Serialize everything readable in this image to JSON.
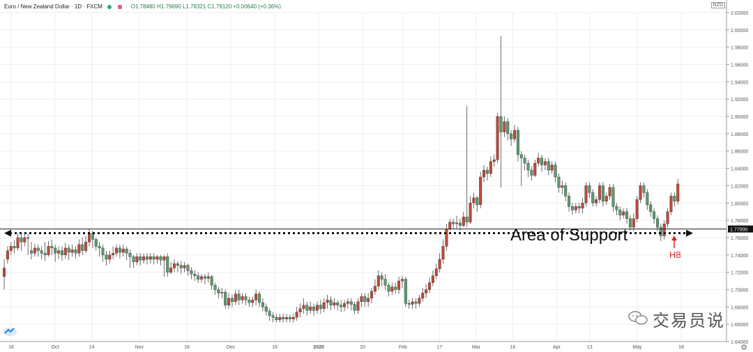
{
  "header": {
    "symbol": "Euro / New Zealand Dollar · 1D · FXCM",
    "ohlc": "O1.78480  H1.79690  L1.78321  C1.79120  +0.00640 (+0.36%)"
  },
  "currency_badge": "NZD",
  "annotation": "Area of Support",
  "marker_label": "H8",
  "watermark": "交易员说",
  "colors": {
    "up": "#5b9a6e",
    "down": "#c0493b",
    "wick": "#444444",
    "grid": "#eeeeee",
    "support": "#222222",
    "marker": "#e02020"
  },
  "chart_data": {
    "type": "candlestick",
    "y_axis": {
      "min": 1.64,
      "max": 2.02,
      "ticks": [
        1.64,
        1.66,
        1.68,
        1.7,
        1.72,
        1.74,
        1.76,
        1.78,
        1.8,
        1.82,
        1.84,
        1.86,
        1.88,
        1.9,
        1.92,
        1.94,
        1.96,
        1.98,
        2.0,
        2.02
      ],
      "tick_labels": [
        "1.64000",
        "1.66000",
        "1.68000",
        "1.70000",
        "1.72000",
        "1.74000",
        "1.76000",
        "1.78000",
        "1.80000",
        "1.82000",
        "1.84000",
        "1.86000",
        "1.88000",
        "1.90000",
        "1.92000",
        "1.94000",
        "1.96000",
        "1.98000",
        "2.00000",
        "2.02000"
      ]
    },
    "x_labels": [
      "16",
      "Oct",
      "14",
      "Nov",
      "18",
      "Dec",
      "16",
      "2020",
      "20",
      "Feb",
      "17",
      "Mar",
      "16",
      "Apr",
      "13",
      "May",
      "18"
    ],
    "x_label_days": [
      0,
      12,
      22,
      35,
      48,
      60,
      72,
      84,
      96,
      107,
      117,
      127,
      137,
      149,
      158,
      171,
      183
    ],
    "support_level": 1.77,
    "support_label": "1.77000",
    "grid": true,
    "candles": [
      [
        1.725,
        1.735,
        1.7,
        1.715
      ],
      [
        1.745,
        1.75,
        1.73,
        1.735
      ],
      [
        1.75,
        1.755,
        1.74,
        1.745
      ],
      [
        1.748,
        1.757,
        1.742,
        1.75
      ],
      [
        1.76,
        1.765,
        1.745,
        1.748
      ],
      [
        1.755,
        1.765,
        1.745,
        1.76
      ],
      [
        1.76,
        1.765,
        1.75,
        1.755
      ],
      [
        1.76,
        1.765,
        1.74,
        1.76
      ],
      [
        1.742,
        1.755,
        1.735,
        1.745
      ],
      [
        1.748,
        1.753,
        1.738,
        1.742
      ],
      [
        1.745,
        1.752,
        1.738,
        1.748
      ],
      [
        1.742,
        1.75,
        1.735,
        1.745
      ],
      [
        1.74,
        1.755,
        1.733,
        1.742
      ],
      [
        1.75,
        1.756,
        1.738,
        1.74
      ],
      [
        1.748,
        1.758,
        1.74,
        1.75
      ],
      [
        1.742,
        1.752,
        1.732,
        1.748
      ],
      [
        1.745,
        1.75,
        1.735,
        1.742
      ],
      [
        1.74,
        1.75,
        1.733,
        1.745
      ],
      [
        1.748,
        1.754,
        1.736,
        1.74
      ],
      [
        1.743,
        1.752,
        1.734,
        1.748
      ],
      [
        1.746,
        1.752,
        1.738,
        1.743
      ],
      [
        1.742,
        1.75,
        1.736,
        1.746
      ],
      [
        1.752,
        1.758,
        1.738,
        1.742
      ],
      [
        1.745,
        1.76,
        1.74,
        1.752
      ],
      [
        1.755,
        1.762,
        1.742,
        1.745
      ],
      [
        1.765,
        1.77,
        1.75,
        1.755
      ],
      [
        1.758,
        1.768,
        1.748,
        1.765
      ],
      [
        1.75,
        1.76,
        1.745,
        1.758
      ],
      [
        1.748,
        1.755,
        1.738,
        1.75
      ],
      [
        1.74,
        1.752,
        1.732,
        1.748
      ],
      [
        1.735,
        1.745,
        1.728,
        1.74
      ],
      [
        1.74,
        1.745,
        1.73,
        1.735
      ],
      [
        1.742,
        1.75,
        1.735,
        1.74
      ],
      [
        1.748,
        1.752,
        1.738,
        1.742
      ],
      [
        1.743,
        1.752,
        1.736,
        1.748
      ],
      [
        1.747,
        1.752,
        1.738,
        1.743
      ],
      [
        1.742,
        1.75,
        1.734,
        1.747
      ],
      [
        1.738,
        1.746,
        1.725,
        1.742
      ],
      [
        1.732,
        1.74,
        1.725,
        1.738
      ],
      [
        1.738,
        1.742,
        1.728,
        1.732
      ],
      [
        1.734,
        1.742,
        1.728,
        1.738
      ],
      [
        1.738,
        1.742,
        1.73,
        1.734
      ],
      [
        1.735,
        1.742,
        1.729,
        1.738
      ],
      [
        1.738,
        1.742,
        1.73,
        1.735
      ],
      [
        1.735,
        1.742,
        1.729,
        1.738
      ],
      [
        1.738,
        1.74,
        1.73,
        1.735
      ],
      [
        1.734,
        1.74,
        1.728,
        1.738
      ],
      [
        1.738,
        1.74,
        1.715,
        1.734
      ],
      [
        1.72,
        1.742,
        1.715,
        1.738
      ],
      [
        1.725,
        1.732,
        1.718,
        1.72
      ],
      [
        1.73,
        1.735,
        1.72,
        1.725
      ],
      [
        1.728,
        1.733,
        1.72,
        1.73
      ],
      [
        1.725,
        1.733,
        1.718,
        1.728
      ],
      [
        1.728,
        1.732,
        1.72,
        1.725
      ],
      [
        1.722,
        1.73,
        1.716,
        1.728
      ],
      [
        1.718,
        1.726,
        1.712,
        1.722
      ],
      [
        1.716,
        1.722,
        1.71,
        1.718
      ],
      [
        1.712,
        1.72,
        1.708,
        1.716
      ],
      [
        1.715,
        1.718,
        1.708,
        1.712
      ],
      [
        1.713,
        1.718,
        1.706,
        1.715
      ],
      [
        1.715,
        1.72,
        1.708,
        1.713
      ],
      [
        1.705,
        1.717,
        1.7,
        1.715
      ],
      [
        1.7,
        1.708,
        1.694,
        1.705
      ],
      [
        1.696,
        1.703,
        1.69,
        1.7
      ],
      [
        1.697,
        1.702,
        1.69,
        1.696
      ],
      [
        1.682,
        1.7,
        1.678,
        1.697
      ],
      [
        1.69,
        1.696,
        1.678,
        1.682
      ],
      [
        1.686,
        1.694,
        1.68,
        1.69
      ],
      [
        1.695,
        1.7,
        1.682,
        1.686
      ],
      [
        1.688,
        1.7,
        1.682,
        1.695
      ],
      [
        1.692,
        1.696,
        1.684,
        1.688
      ],
      [
        1.688,
        1.696,
        1.682,
        1.692
      ],
      [
        1.685,
        1.692,
        1.68,
        1.688
      ],
      [
        1.688,
        1.692,
        1.68,
        1.685
      ],
      [
        1.695,
        1.7,
        1.682,
        1.688
      ],
      [
        1.685,
        1.698,
        1.68,
        1.695
      ],
      [
        1.68,
        1.69,
        1.675,
        1.685
      ],
      [
        1.675,
        1.684,
        1.67,
        1.68
      ],
      [
        1.67,
        1.678,
        1.664,
        1.675
      ],
      [
        1.668,
        1.674,
        1.662,
        1.67
      ],
      [
        1.665,
        1.672,
        1.662,
        1.668
      ],
      [
        1.668,
        1.672,
        1.662,
        1.665
      ],
      [
        1.666,
        1.672,
        1.662,
        1.668
      ],
      [
        1.668,
        1.672,
        1.662,
        1.666
      ],
      [
        1.666,
        1.671,
        1.662,
        1.668
      ],
      [
        1.668,
        1.672,
        1.662,
        1.666
      ],
      [
        1.674,
        1.68,
        1.664,
        1.668
      ],
      [
        1.678,
        1.684,
        1.668,
        1.674
      ],
      [
        1.682,
        1.69,
        1.672,
        1.678
      ],
      [
        1.676,
        1.686,
        1.67,
        1.682
      ],
      [
        1.68,
        1.686,
        1.672,
        1.676
      ],
      [
        1.676,
        1.684,
        1.67,
        1.68
      ],
      [
        1.682,
        1.686,
        1.672,
        1.676
      ],
      [
        1.678,
        1.688,
        1.672,
        1.682
      ],
      [
        1.685,
        1.69,
        1.674,
        1.678
      ],
      [
        1.688,
        1.694,
        1.678,
        1.685
      ],
      [
        1.682,
        1.692,
        1.676,
        1.688
      ],
      [
        1.685,
        1.69,
        1.678,
        1.682
      ],
      [
        1.682,
        1.688,
        1.676,
        1.685
      ],
      [
        1.68,
        1.688,
        1.674,
        1.682
      ],
      [
        1.684,
        1.688,
        1.675,
        1.68
      ],
      [
        1.686,
        1.69,
        1.678,
        1.684
      ],
      [
        1.683,
        1.69,
        1.676,
        1.686
      ],
      [
        1.676,
        1.686,
        1.672,
        1.683
      ],
      [
        1.686,
        1.69,
        1.672,
        1.676
      ],
      [
        1.692,
        1.696,
        1.68,
        1.686
      ],
      [
        1.686,
        1.696,
        1.68,
        1.692
      ],
      [
        1.69,
        1.696,
        1.68,
        1.686
      ],
      [
        1.698,
        1.702,
        1.684,
        1.69
      ],
      [
        1.704,
        1.712,
        1.694,
        1.698
      ],
      [
        1.716,
        1.722,
        1.7,
        1.704
      ],
      [
        1.712,
        1.72,
        1.704,
        1.716
      ],
      [
        1.705,
        1.718,
        1.7,
        1.712
      ],
      [
        1.698,
        1.708,
        1.692,
        1.705
      ],
      [
        1.703,
        1.708,
        1.694,
        1.698
      ],
      [
        1.7,
        1.708,
        1.695,
        1.703
      ],
      [
        1.71,
        1.715,
        1.695,
        1.7
      ],
      [
        1.712,
        1.716,
        1.702,
        1.71
      ],
      [
        1.684,
        1.715,
        1.68,
        1.712
      ],
      [
        1.683,
        1.688,
        1.678,
        1.684
      ],
      [
        1.686,
        1.69,
        1.678,
        1.683
      ],
      [
        1.684,
        1.69,
        1.678,
        1.686
      ],
      [
        1.69,
        1.694,
        1.68,
        1.684
      ],
      [
        1.696,
        1.702,
        1.686,
        1.69
      ],
      [
        1.7,
        1.706,
        1.69,
        1.696
      ],
      [
        1.708,
        1.714,
        1.696,
        1.7
      ],
      [
        1.716,
        1.722,
        1.704,
        1.708
      ],
      [
        1.724,
        1.73,
        1.712,
        1.716
      ],
      [
        1.735,
        1.742,
        1.72,
        1.724
      ],
      [
        1.75,
        1.758,
        1.73,
        1.735
      ],
      [
        1.77,
        1.776,
        1.745,
        1.75
      ],
      [
        1.778,
        1.782,
        1.768,
        1.77
      ],
      [
        1.776,
        1.782,
        1.77,
        1.778
      ],
      [
        1.777,
        1.785,
        1.77,
        1.776
      ],
      [
        1.774,
        1.782,
        1.768,
        1.777
      ],
      [
        1.784,
        1.79,
        1.772,
        1.774
      ],
      [
        1.778,
        1.912,
        1.772,
        1.784
      ],
      [
        1.8,
        1.808,
        1.776,
        1.778
      ],
      [
        1.806,
        1.812,
        1.794,
        1.8
      ],
      [
        1.798,
        1.808,
        1.79,
        1.806
      ],
      [
        1.83,
        1.836,
        1.794,
        1.798
      ],
      [
        1.838,
        1.844,
        1.824,
        1.83
      ],
      [
        1.834,
        1.842,
        1.826,
        1.838
      ],
      [
        1.848,
        1.854,
        1.83,
        1.834
      ],
      [
        1.85,
        1.856,
        1.842,
        1.848
      ],
      [
        1.9,
        1.904,
        1.846,
        1.85
      ],
      [
        1.882,
        1.993,
        1.818,
        1.9
      ],
      [
        1.894,
        1.9,
        1.876,
        1.882
      ],
      [
        1.88,
        1.898,
        1.872,
        1.894
      ],
      [
        1.874,
        1.884,
        1.866,
        1.88
      ],
      [
        1.884,
        1.89,
        1.87,
        1.874
      ],
      [
        1.856,
        1.888,
        1.848,
        1.884
      ],
      [
        1.852,
        1.86,
        1.82,
        1.856
      ],
      [
        1.846,
        1.856,
        1.838,
        1.852
      ],
      [
        1.838,
        1.85,
        1.83,
        1.846
      ],
      [
        1.832,
        1.842,
        1.826,
        1.838
      ],
      [
        1.846,
        1.85,
        1.83,
        1.832
      ],
      [
        1.852,
        1.858,
        1.842,
        1.846
      ],
      [
        1.844,
        1.856,
        1.836,
        1.852
      ],
      [
        1.848,
        1.852,
        1.838,
        1.844
      ],
      [
        1.838,
        1.852,
        1.832,
        1.848
      ],
      [
        1.844,
        1.848,
        1.834,
        1.838
      ],
      [
        1.83,
        1.848,
        1.824,
        1.844
      ],
      [
        1.818,
        1.834,
        1.812,
        1.83
      ],
      [
        1.82,
        1.826,
        1.81,
        1.818
      ],
      [
        1.808,
        1.824,
        1.802,
        1.82
      ],
      [
        1.796,
        1.812,
        1.79,
        1.808
      ],
      [
        1.792,
        1.8,
        1.786,
        1.796
      ],
      [
        1.796,
        1.8,
        1.788,
        1.792
      ],
      [
        1.794,
        1.8,
        1.788,
        1.796
      ],
      [
        1.8,
        1.806,
        1.788,
        1.794
      ],
      [
        1.82,
        1.824,
        1.796,
        1.8
      ],
      [
        1.812,
        1.824,
        1.806,
        1.82
      ],
      [
        1.8,
        1.816,
        1.796,
        1.812
      ],
      [
        1.804,
        1.808,
        1.796,
        1.8
      ],
      [
        1.82,
        1.824,
        1.8,
        1.804
      ],
      [
        1.802,
        1.824,
        1.796,
        1.82
      ],
      [
        1.808,
        1.812,
        1.798,
        1.802
      ],
      [
        1.818,
        1.822,
        1.804,
        1.808
      ],
      [
        1.796,
        1.822,
        1.79,
        1.818
      ],
      [
        1.792,
        1.8,
        1.786,
        1.796
      ],
      [
        1.786,
        1.796,
        1.78,
        1.792
      ],
      [
        1.79,
        1.794,
        1.782,
        1.786
      ],
      [
        1.782,
        1.794,
        1.776,
        1.79
      ],
      [
        1.772,
        1.786,
        1.768,
        1.782
      ],
      [
        1.782,
        1.788,
        1.768,
        1.772
      ],
      [
        1.804,
        1.808,
        1.778,
        1.782
      ],
      [
        1.82,
        1.824,
        1.8,
        1.804
      ],
      [
        1.812,
        1.824,
        1.806,
        1.82
      ],
      [
        1.798,
        1.816,
        1.792,
        1.812
      ],
      [
        1.79,
        1.802,
        1.784,
        1.798
      ],
      [
        1.782,
        1.794,
        1.776,
        1.79
      ],
      [
        1.772,
        1.786,
        1.768,
        1.782
      ],
      [
        1.762,
        1.776,
        1.756,
        1.772
      ],
      [
        1.776,
        1.78,
        1.758,
        1.762
      ],
      [
        1.79,
        1.794,
        1.772,
        1.776
      ],
      [
        1.808,
        1.812,
        1.786,
        1.79
      ],
      [
        1.802,
        1.812,
        1.796,
        1.808
      ],
      [
        1.822,
        1.828,
        1.798,
        1.802
      ]
    ]
  }
}
